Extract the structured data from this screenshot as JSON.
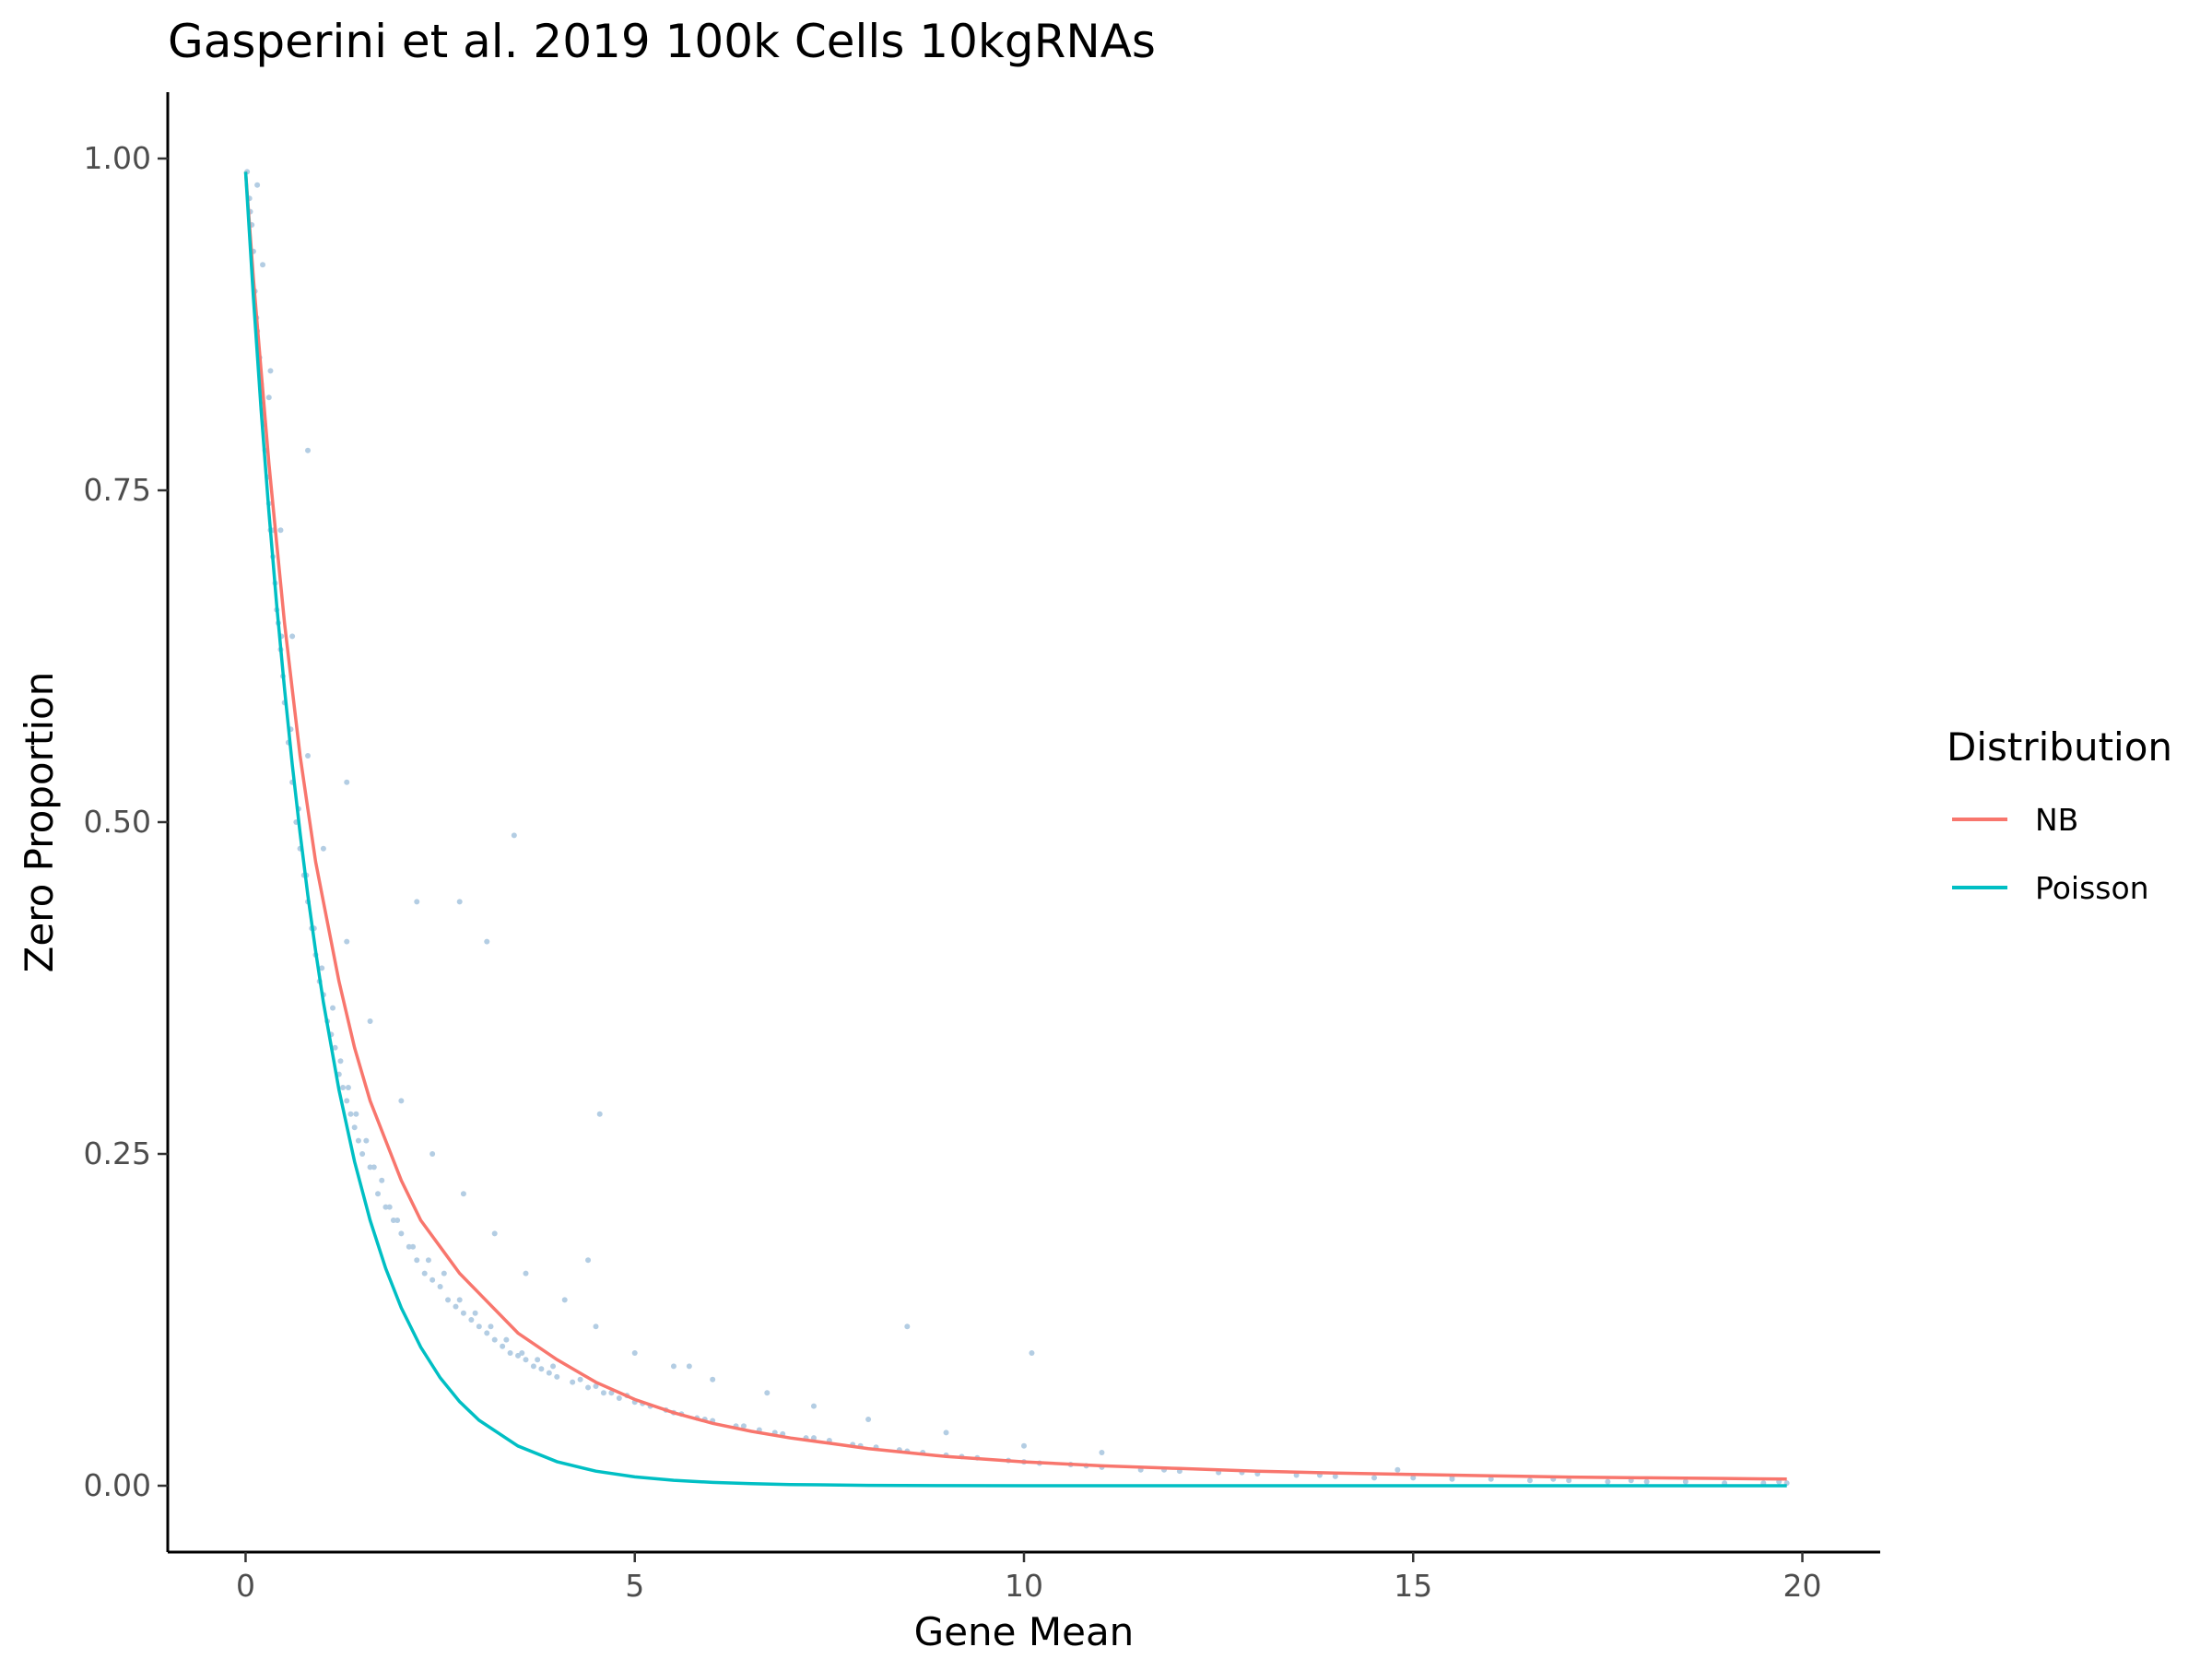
{
  "chart_data": {
    "type": "scatter",
    "title": "Gasperini et al. 2019 100k Cells 10kgRNAs",
    "xlabel": "Gene Mean",
    "ylabel": "Zero Proportion",
    "xlim": [
      -1,
      21
    ],
    "ylim": [
      -0.05,
      1.05
    ],
    "x_ticks": [
      0,
      5,
      10,
      15,
      20
    ],
    "x_tick_labels": [
      "0",
      "5",
      "10",
      "15",
      "20"
    ],
    "y_ticks": [
      0,
      0.25,
      0.5,
      0.75,
      1.0
    ],
    "y_tick_labels": [
      "0.00",
      "0.25",
      "0.50",
      "0.75",
      "1.00"
    ],
    "grid": false,
    "point_color": "#b3cde3",
    "scatter": {
      "x": [
        0.02,
        0.05,
        0.08,
        0.1,
        0.12,
        0.15,
        0.18,
        0.2,
        0.22,
        0.25,
        0.28,
        0.3,
        0.32,
        0.35,
        0.38,
        0.4,
        0.42,
        0.45,
        0.48,
        0.5,
        0.55,
        0.6,
        0.65,
        0.7,
        0.75,
        0.8,
        0.85,
        0.9,
        0.95,
        1.0,
        1.05,
        1.1,
        1.15,
        1.2,
        1.25,
        1.3,
        1.35,
        1.4,
        1.45,
        1.5,
        1.6,
        1.7,
        1.8,
        1.9,
        2.0,
        2.1,
        2.2,
        2.3,
        2.4,
        2.5,
        2.6,
        2.7,
        2.8,
        2.9,
        3.0,
        3.1,
        3.2,
        3.3,
        3.4,
        3.5,
        3.6,
        3.7,
        3.8,
        3.9,
        4.0,
        4.2,
        4.4,
        4.6,
        4.8,
        5.0,
        5.2,
        5.4,
        5.6,
        5.8,
        6.0,
        6.3,
        6.6,
        6.9,
        7.2,
        7.5,
        7.8,
        8.1,
        8.4,
        8.7,
        9.0,
        9.4,
        9.8,
        10.2,
        10.6,
        11.0,
        11.5,
        12.0,
        12.5,
        13.0,
        13.5,
        14.0,
        14.5,
        15.0,
        15.5,
        16.0,
        16.5,
        17.0,
        17.5,
        18.0,
        18.5,
        19.0,
        19.5,
        19.8,
        0.06,
        0.14,
        0.24,
        0.36,
        0.46,
        0.58,
        0.68,
        0.78,
        0.88,
        0.98,
        1.12,
        1.22,
        1.32,
        1.42,
        1.55,
        1.65,
        1.75,
        1.85,
        1.95,
        2.15,
        2.35,
        2.55,
        2.75,
        2.95,
        3.15,
        3.35,
        3.55,
        3.75,
        3.95,
        4.3,
        4.5,
        4.7,
        4.9,
        5.1,
        5.5,
        5.9,
        6.4,
        6.8,
        7.3,
        7.9,
        8.5,
        9.2,
        10.0,
        10.8,
        11.8,
        12.8,
        13.8,
        15.5,
        17.8,
        19.7,
        0.3,
        0.45,
        0.6,
        0.8,
        1.0,
        1.3,
        1.6,
        2.0,
        2.4,
        2.8,
        3.2,
        3.6,
        4.1,
        4.5,
        5.0,
        5.5,
        6.0,
        6.7,
        7.3,
        8.0,
        9.0,
        10.0,
        11.0,
        14.8,
        16.8,
        3.45,
        2.75,
        3.1,
        4.55,
        2.2,
        1.3,
        0.8,
        5.7,
        4.4,
        8.5,
        10.1,
        0.15,
        0.22,
        0.32
      ],
      "y": [
        0.99,
        0.97,
        0.95,
        0.93,
        0.9,
        0.87,
        0.85,
        0.83,
        0.81,
        0.78,
        0.76,
        0.74,
        0.72,
        0.7,
        0.68,
        0.66,
        0.65,
        0.63,
        0.61,
        0.59,
        0.56,
        0.53,
        0.5,
        0.48,
        0.46,
        0.44,
        0.42,
        0.4,
        0.38,
        0.37,
        0.35,
        0.34,
        0.33,
        0.31,
        0.3,
        0.29,
        0.28,
        0.27,
        0.26,
        0.25,
        0.24,
        0.22,
        0.21,
        0.2,
        0.19,
        0.18,
        0.17,
        0.16,
        0.155,
        0.15,
        0.14,
        0.135,
        0.13,
        0.125,
        0.12,
        0.115,
        0.11,
        0.105,
        0.1,
        0.098,
        0.095,
        0.09,
        0.088,
        0.085,
        0.082,
        0.078,
        0.074,
        0.07,
        0.066,
        0.063,
        0.06,
        0.057,
        0.054,
        0.051,
        0.049,
        0.045,
        0.042,
        0.039,
        0.036,
        0.034,
        0.031,
        0.029,
        0.027,
        0.025,
        0.023,
        0.021,
        0.019,
        0.017,
        0.016,
        0.014,
        0.012,
        0.011,
        0.01,
        0.009,
        0.008,
        0.007,
        0.006,
        0.006,
        0.005,
        0.005,
        0.004,
        0.004,
        0.003,
        0.003,
        0.003,
        0.002,
        0.002,
        0.002,
        0.96,
        0.88,
        0.8,
        0.72,
        0.64,
        0.57,
        0.51,
        0.46,
        0.42,
        0.39,
        0.36,
        0.32,
        0.3,
        0.28,
        0.26,
        0.24,
        0.23,
        0.21,
        0.2,
        0.18,
        0.17,
        0.16,
        0.14,
        0.13,
        0.12,
        0.11,
        0.1,
        0.095,
        0.09,
        0.08,
        0.075,
        0.07,
        0.068,
        0.062,
        0.055,
        0.05,
        0.045,
        0.04,
        0.036,
        0.03,
        0.026,
        0.022,
        0.018,
        0.015,
        0.012,
        0.01,
        0.008,
        0.007,
        0.004,
        0.003,
        0.82,
        0.72,
        0.64,
        0.55,
        0.48,
        0.41,
        0.35,
        0.29,
        0.25,
        0.22,
        0.19,
        0.16,
        0.14,
        0.12,
        0.1,
        0.09,
        0.08,
        0.07,
        0.06,
        0.05,
        0.04,
        0.03,
        0.025,
        0.012,
        0.005,
        0.49,
        0.44,
        0.41,
        0.28,
        0.44,
        0.53,
        0.78,
        0.09,
        0.17,
        0.12,
        0.1,
        0.98,
        0.92,
        0.84
      ]
    },
    "series": [
      {
        "name": "NB",
        "color": "#f8766d",
        "x": [
          0,
          0.1,
          0.2,
          0.3,
          0.4,
          0.5,
          0.6,
          0.7,
          0.8,
          0.9,
          1.0,
          1.2,
          1.4,
          1.6,
          1.8,
          2.0,
          2.25,
          2.5,
          2.75,
          3.0,
          3.5,
          4.0,
          4.5,
          5.0,
          5.5,
          6.0,
          6.5,
          7.0,
          7.5,
          8.0,
          9.0,
          10.0,
          11.0,
          12.0,
          13.0,
          14.0,
          15.0,
          16.0,
          17.0,
          18.0,
          19.0,
          19.8
        ],
        "y": [
          0.99,
          0.91,
          0.84,
          0.77,
          0.71,
          0.65,
          0.6,
          0.55,
          0.51,
          0.47,
          0.44,
          0.38,
          0.33,
          0.29,
          0.26,
          0.23,
          0.2,
          0.18,
          0.16,
          0.145,
          0.115,
          0.095,
          0.078,
          0.065,
          0.055,
          0.047,
          0.041,
          0.036,
          0.032,
          0.028,
          0.022,
          0.018,
          0.015,
          0.013,
          0.011,
          0.0095,
          0.0085,
          0.0075,
          0.0065,
          0.006,
          0.0055,
          0.005
        ]
      },
      {
        "name": "Poisson",
        "color": "#00bfc4",
        "x": [
          0,
          0.1,
          0.2,
          0.3,
          0.4,
          0.5,
          0.6,
          0.7,
          0.8,
          0.9,
          1.0,
          1.2,
          1.4,
          1.6,
          1.8,
          2.0,
          2.25,
          2.5,
          2.75,
          3.0,
          3.5,
          4.0,
          4.5,
          5.0,
          5.5,
          6.0,
          6.5,
          7.0,
          7.5,
          8.0,
          9.0,
          10.0,
          11.0,
          12.0,
          13.0,
          14.0,
          15.0,
          16.0,
          17.0,
          18.0,
          19.0,
          19.8
        ],
        "y": [
          0.99,
          0.8958,
          0.8106,
          0.7334,
          0.6637,
          0.6005,
          0.5434,
          0.4917,
          0.4449,
          0.4026,
          0.3642,
          0.2982,
          0.2442,
          0.1999,
          0.1637,
          0.134,
          0.1044,
          0.0813,
          0.0633,
          0.0493,
          0.0299,
          0.0181,
          0.011,
          0.0067,
          0.0041,
          0.0025,
          0.0015,
          0.0009,
          0.0006,
          0.0003,
          0.0001,
          0.0,
          0.0,
          0.0,
          0.0,
          0.0,
          0.0,
          0.0,
          0.0,
          0.0,
          0.0,
          0.0
        ]
      }
    ],
    "legend": {
      "title": "Distribution",
      "placement": "right",
      "entries": [
        {
          "label": "NB",
          "color": "#f8766d"
        },
        {
          "label": "Poisson",
          "color": "#00bfc4"
        }
      ]
    }
  }
}
